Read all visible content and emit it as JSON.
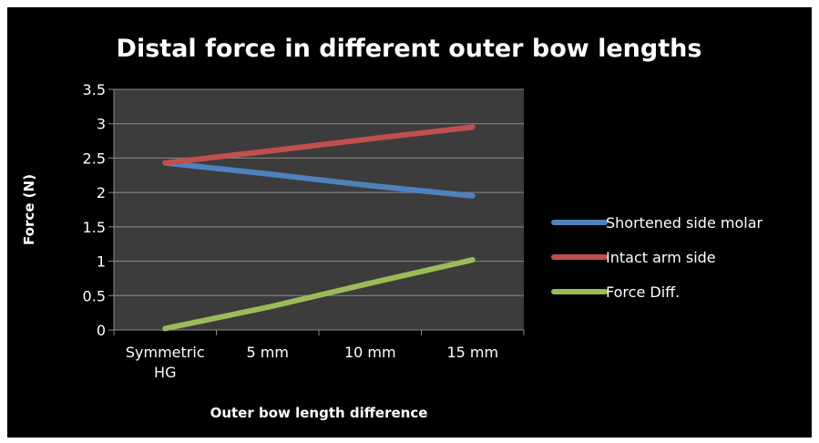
{
  "colors": {
    "background": "#000000",
    "plot_area": "#3c3c3c",
    "gridline": "#8a8a8a",
    "text": "#ffffff"
  },
  "chart_data": {
    "type": "line",
    "title": "Distal force in different outer bow lengths",
    "xlabel": "Outer bow length difference",
    "ylabel": "Force (N)",
    "categories": [
      [
        "Symmetric",
        "HG"
      ],
      [
        "5 mm"
      ],
      [
        "10 mm"
      ],
      [
        "15 mm"
      ]
    ],
    "ylim": [
      0,
      3.5
    ],
    "yticks": [
      "0",
      "0.5",
      "1",
      "1.5",
      "2",
      "2.5",
      "3",
      "3.5"
    ],
    "grid": true,
    "legend_position": "right",
    "series": [
      {
        "name": "Shortened side molar",
        "color": "#4f81bd",
        "values": [
          2.43,
          2.27,
          2.1,
          1.95
        ]
      },
      {
        "name": "Intact arm side",
        "color": "#c0504d",
        "values": [
          2.43,
          2.6,
          2.78,
          2.95
        ]
      },
      {
        "name": "Force Diff.",
        "color": "#9bbb59",
        "values": [
          0.02,
          0.33,
          0.68,
          1.02
        ]
      }
    ]
  }
}
